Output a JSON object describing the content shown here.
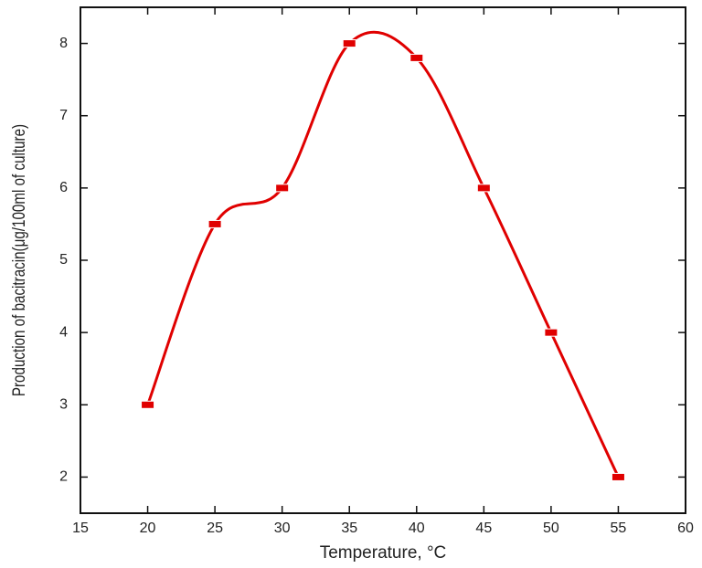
{
  "chart_data": {
    "type": "line",
    "x_label": "Temperature, °C",
    "y_label": "Production of bacitracin(μg/100ml of culture)",
    "x": [
      20,
      25,
      30,
      35,
      40,
      45,
      50,
      55
    ],
    "values": [
      3,
      5.5,
      6,
      8,
      7.8,
      6,
      4,
      2
    ],
    "color": "#e00000",
    "xlim": [
      15,
      60
    ],
    "xticks": [
      15,
      20,
      25,
      30,
      35,
      40,
      45,
      50,
      55,
      60
    ],
    "ylim": [
      1.5,
      8.5
    ],
    "yticks": [
      2,
      3,
      4,
      5,
      6,
      7,
      8
    ],
    "smooth": true
  }
}
